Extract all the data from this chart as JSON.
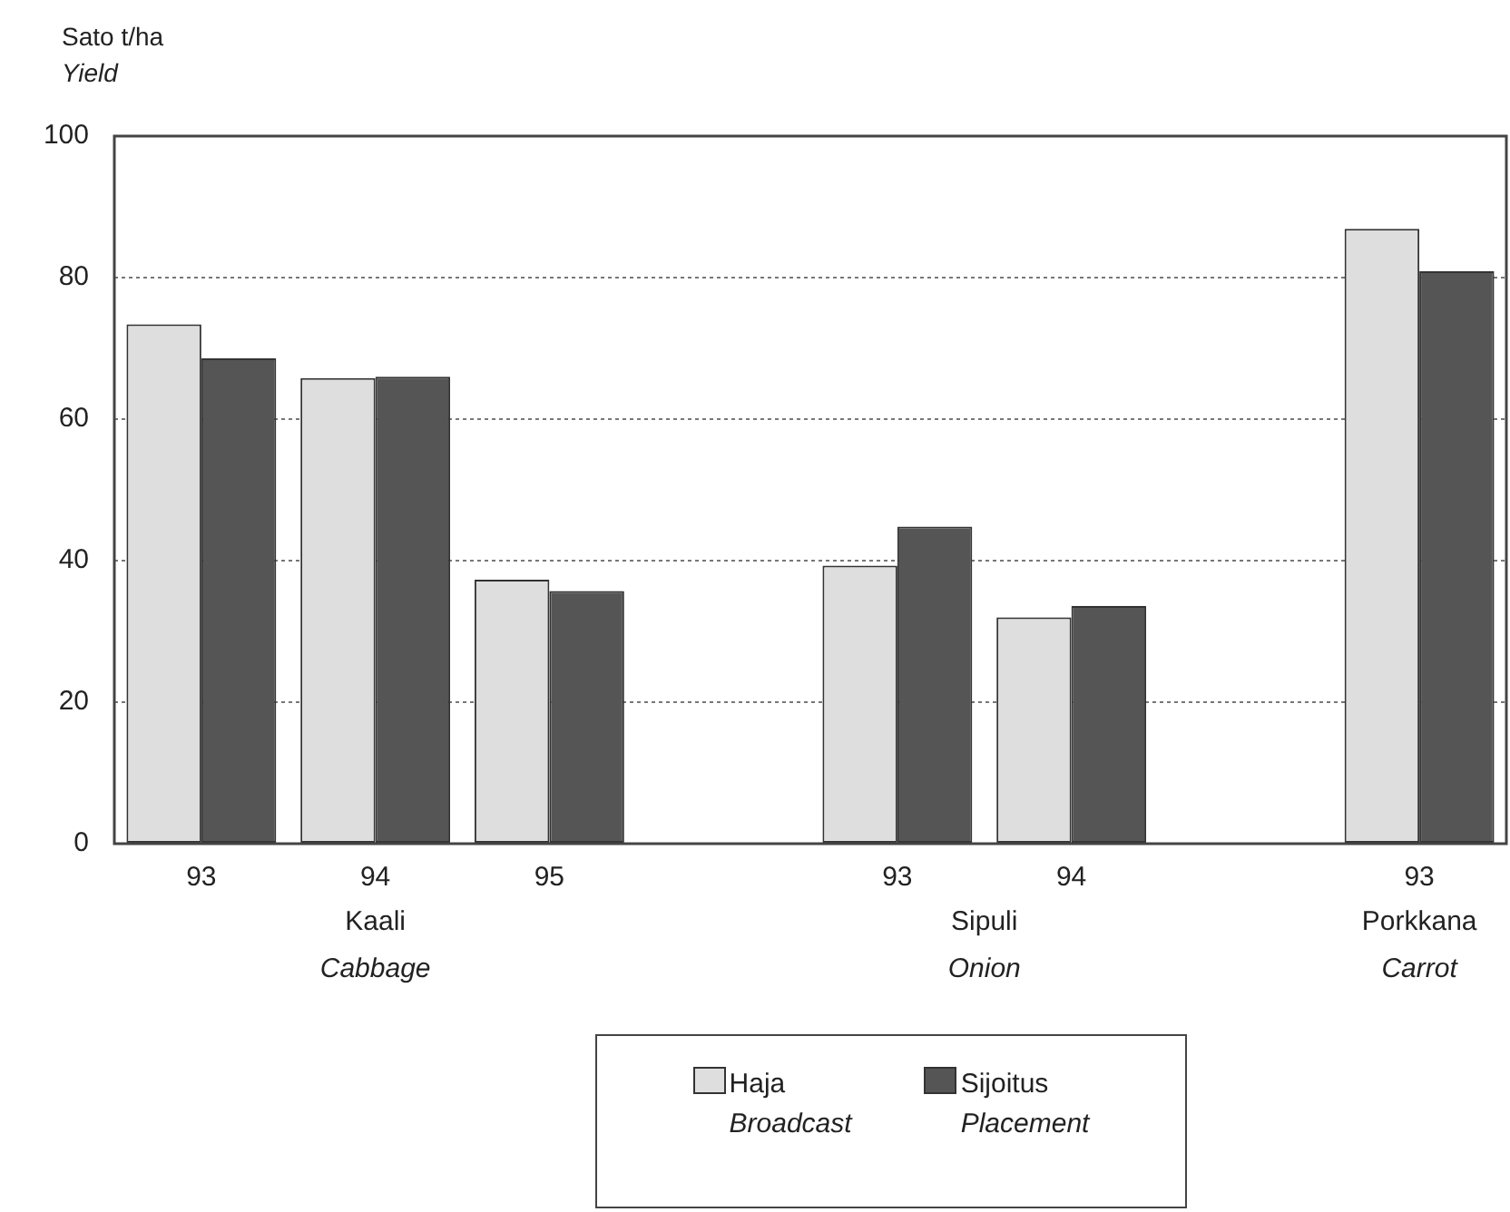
{
  "chart_data": {
    "type": "bar",
    "ylabel": "Sato t/ha\nYield",
    "categories": [
      "93",
      "94",
      "95",
      null,
      "93",
      "94",
      null,
      "93"
    ],
    "series": [
      {
        "name": "Haja\nBroadcast",
        "color": "#dedede",
        "values": [
          73.4,
          65.8,
          37.3,
          null,
          39.3,
          32.0,
          null,
          86.9
        ]
      },
      {
        "name": "Sijoitus\nPlacement",
        "color": "#555555",
        "values": [
          68.6,
          66.0,
          35.7,
          null,
          44.8,
          33.6,
          null,
          80.9
        ]
      }
    ],
    "ylim": [
      0,
      100
    ],
    "yticks": [
      0,
      20,
      40,
      60,
      80,
      100
    ],
    "grid": "y",
    "legend": "bottom",
    "annotations": [
      "Kaali\nCabbage",
      "Sipuli\nOnion",
      "Porkkana\nCarrot"
    ]
  }
}
